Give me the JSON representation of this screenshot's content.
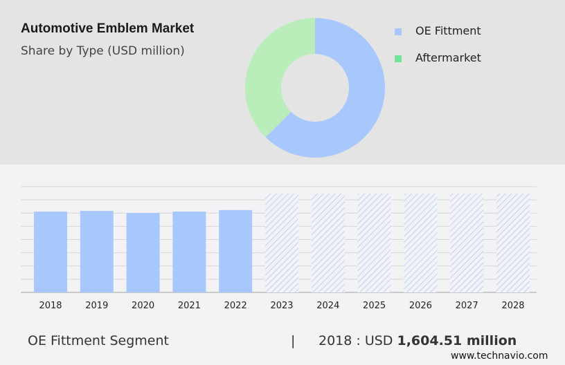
{
  "header": {
    "title": "Automotive Emblem Market",
    "subtitle": "Share by Type (USD million)"
  },
  "chart_data": [
    {
      "type": "pie",
      "donut": true,
      "title": "Automotive Emblem Market",
      "subtitle": "Share by Type (USD million)",
      "slices": [
        {
          "name": "OE Fittment",
          "share": 62.5,
          "color": "#a8c8fd"
        },
        {
          "name": "Aftermarket",
          "share": 37.5,
          "color": "#b9edb9"
        }
      ],
      "legend_colors": [
        "#a8c8fd",
        "#74e39a"
      ],
      "legend": "right"
    },
    {
      "type": "bar",
      "categories": [
        "2018",
        "2019",
        "2020",
        "2021",
        "2022",
        "2023",
        "2024",
        "2025",
        "2026",
        "2027",
        "2028"
      ],
      "values": [
        1604.51,
        1618,
        1577,
        1605,
        1636,
        null,
        null,
        null,
        null,
        null,
        null
      ],
      "forecast": [
        false,
        false,
        false,
        false,
        false,
        true,
        true,
        true,
        true,
        true,
        true
      ],
      "ylim": [
        0,
        2100
      ],
      "grid": true,
      "color": "#a8c8fd",
      "xlabel": "",
      "ylabel": ""
    }
  ],
  "footer": {
    "segment": "OE Fittment Segment",
    "separator": "|",
    "year_label": "2018 : USD ",
    "value": "1,604.51 million",
    "site": "www.technavio.com"
  }
}
